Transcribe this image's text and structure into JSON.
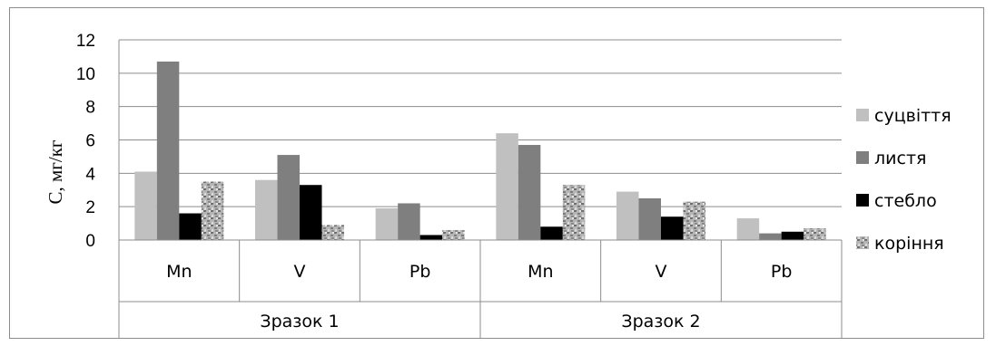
{
  "chart_data": {
    "type": "bar",
    "title": "",
    "ylabel": "C, мг/кг",
    "xlabel": "",
    "ylim": [
      0,
      12
    ],
    "yticks": [
      0,
      2,
      4,
      6,
      8,
      10,
      12
    ],
    "grid": true,
    "legend_position": "right",
    "groups": [
      {
        "label": "Зразок 1",
        "categories": [
          "Mn",
          "V",
          "Pb"
        ]
      },
      {
        "label": "Зразок 2",
        "categories": [
          "Mn",
          "V",
          "Pb"
        ]
      }
    ],
    "series": [
      {
        "name": "суцвіття",
        "color": "#c0c0c0",
        "pattern": "solid",
        "values": [
          4.1,
          3.6,
          1.9,
          6.4,
          2.9,
          1.3
        ]
      },
      {
        "name": "листя",
        "color": "#7f7f7f",
        "pattern": "solid",
        "values": [
          10.7,
          5.1,
          2.2,
          5.7,
          2.5,
          0.4
        ]
      },
      {
        "name": "стебло",
        "color": "#000000",
        "pattern": "solid",
        "values": [
          1.6,
          3.3,
          0.3,
          0.8,
          1.4,
          0.5
        ]
      },
      {
        "name": "коріння",
        "color": "#9a9a9a",
        "pattern": "mottled",
        "values": [
          3.5,
          0.9,
          0.6,
          3.3,
          2.3,
          0.7
        ]
      }
    ]
  }
}
